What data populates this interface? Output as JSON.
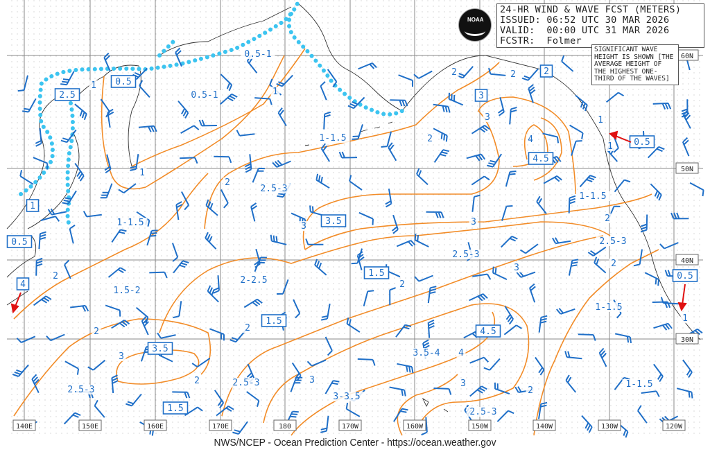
{
  "header": {
    "title": "24-HR WIND & WAVE FCST (METERS)",
    "issued": "ISSUED: 06:52 UTC 30 MAR 2026",
    "valid": "VALID:  00:00 UTC 31 MAR 2026",
    "forecaster": "FCSTR:  Folmer"
  },
  "logo": {
    "text": "NOAA"
  },
  "note": "SIGNIFICANT WAVE HEIGHT IS SHOWN [THE AVERAGE HEIGHT OF THE HIGHEST ONE-THIRD OF THE WAVES]",
  "footer": "NWS/NCEP - Ocean Prediction Center - https://ocean.weather.gov",
  "longitudes": [
    "140E",
    "150E",
    "160E",
    "170E",
    "180",
    "170W",
    "160W",
    "150W",
    "140W",
    "130W",
    "120W"
  ],
  "latitudes": [
    "60N",
    "50N",
    "40N",
    "30N"
  ],
  "wave_labels": [
    "0.5-1",
    "1",
    "0.5-1",
    "1",
    "1-1.5",
    "2",
    "2",
    "3",
    "4",
    "2",
    "1",
    "1",
    "1",
    "2",
    "2.5-3",
    "1-1.5",
    "1-1.5",
    "3",
    "3",
    "2",
    "2.5-3",
    "2.5-3",
    "2",
    "3",
    "2",
    "1.5-2",
    "2-2.5",
    "2",
    "1-1.5",
    "1",
    "2",
    "2",
    "3",
    "3.5-4",
    "4",
    "2",
    "2.5-3",
    "3",
    "1-1.5",
    "2.5-3",
    "3-3.5",
    "3",
    "2",
    "2.5-3"
  ],
  "boxed_labels": [
    "0.5",
    "2.5",
    "1",
    "0.5",
    "4",
    "3",
    "2",
    "4.5",
    "0.5",
    "3.5",
    "1.5",
    "1.5",
    "0.5",
    "4.5",
    "3.5",
    "1.5"
  ],
  "colors": {
    "contour": "#f28c28",
    "wind_barb": "#1f6fc8",
    "ice_edge": "#3cc4f0",
    "arrow": "#e01010",
    "grid": "#888888"
  }
}
